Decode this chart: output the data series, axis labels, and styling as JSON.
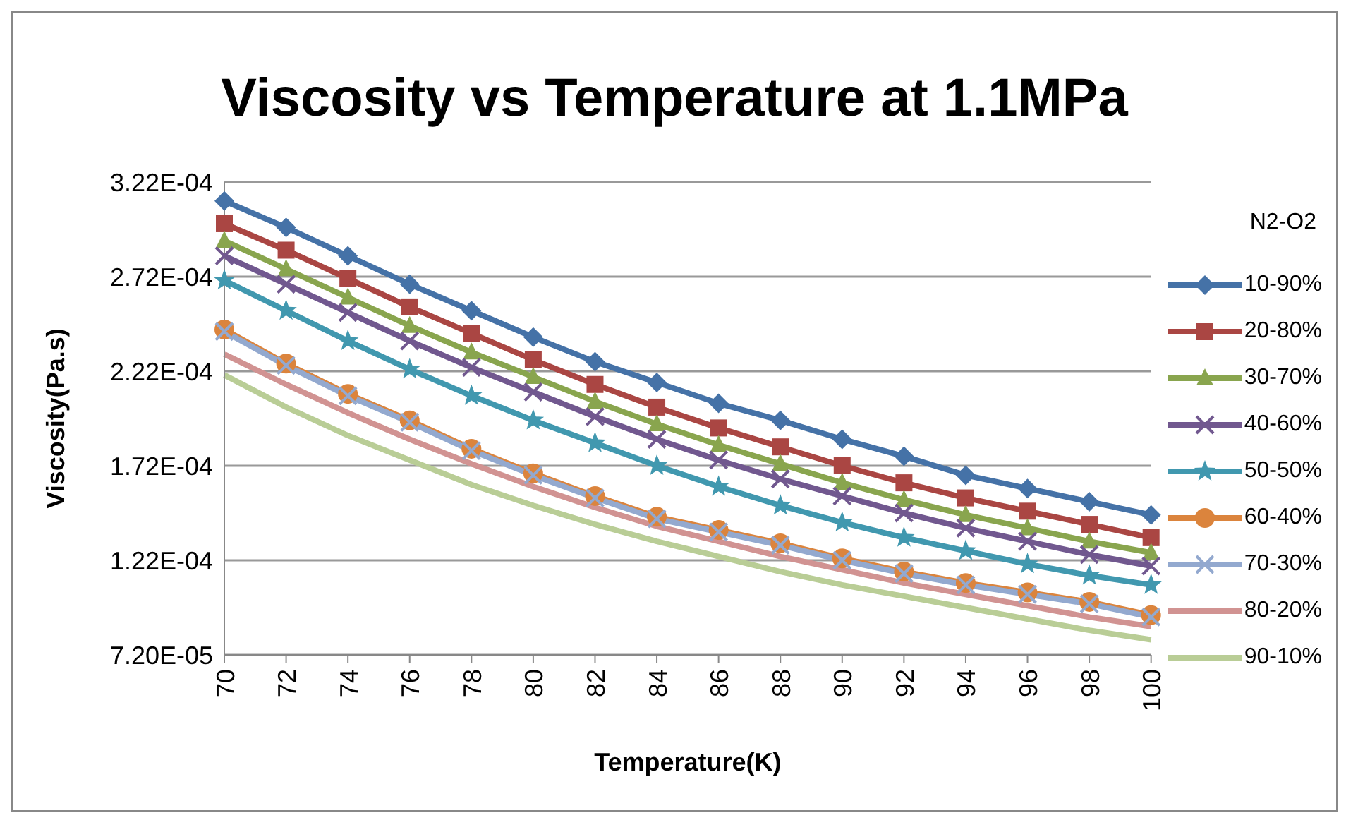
{
  "chart_data": {
    "type": "line",
    "title": "Viscosity vs Temperature at 1.1MPa",
    "xlabel": "Temperature(K)",
    "ylabel": "Viscosity(Pa.s)",
    "legend_title": "N2-O2",
    "categories": [
      "70",
      "72",
      "74",
      "76",
      "78",
      "80",
      "82",
      "84",
      "86",
      "88",
      "90",
      "92",
      "94",
      "96",
      "98",
      "100"
    ],
    "ylim": [
      7.2e-05,
      0.000322
    ],
    "yticks": [
      {
        "value": 7.2e-05,
        "label": "7.20E-05"
      },
      {
        "value": 0.000122,
        "label": "1.22E-04"
      },
      {
        "value": 0.000172,
        "label": "1.72E-04"
      },
      {
        "value": 0.000222,
        "label": "2.22E-04"
      },
      {
        "value": 0.000272,
        "label": "2.72E-04"
      },
      {
        "value": 0.000322,
        "label": "3.22E-04"
      }
    ],
    "grid": "y",
    "legend": "right",
    "line_style": "solid",
    "series": [
      {
        "name": "10-90%",
        "color": "#4572a7",
        "marker": "diamond",
        "values": [
          0.000312,
          0.000298,
          0.000283,
          0.000268,
          0.000254,
          0.00024,
          0.000227,
          0.000216,
          0.000205,
          0.000196,
          0.000186,
          0.000177,
          0.000167,
          0.00016,
          0.000153,
          0.000146
        ]
      },
      {
        "name": "20-80%",
        "color": "#aa4643",
        "marker": "square",
        "values": [
          0.0003,
          0.000286,
          0.000271,
          0.000256,
          0.000242,
          0.000228,
          0.000215,
          0.000203,
          0.000192,
          0.000182,
          0.000172,
          0.000163,
          0.000155,
          0.000148,
          0.000141,
          0.000134
        ]
      },
      {
        "name": "30-70%",
        "color": "#89a54e",
        "marker": "triangle",
        "values": [
          0.000291,
          0.000276,
          0.000261,
          0.000246,
          0.000232,
          0.000219,
          0.000206,
          0.000194,
          0.000183,
          0.000173,
          0.000163,
          0.000154,
          0.000146,
          0.000139,
          0.000132,
          0.000126
        ]
      },
      {
        "name": "40-60%",
        "color": "#71588f",
        "marker": "cross",
        "values": [
          0.000283,
          0.000268,
          0.000253,
          0.000238,
          0.000224,
          0.000211,
          0.000198,
          0.000186,
          0.000175,
          0.000165,
          0.000156,
          0.000147,
          0.000139,
          0.000132,
          0.000125,
          0.000119
        ]
      },
      {
        "name": "50-50%",
        "color": "#4198af",
        "marker": "star",
        "values": [
          0.00027,
          0.000254,
          0.000238,
          0.000223,
          0.000209,
          0.000196,
          0.000184,
          0.000172,
          0.000161,
          0.000151,
          0.000142,
          0.000134,
          0.000127,
          0.00012,
          0.000114,
          0.000109
        ]
      },
      {
        "name": "60-40%",
        "color": "#db843d",
        "marker": "circle",
        "values": [
          0.000244,
          0.000226,
          0.00021,
          0.000196,
          0.000181,
          0.000168,
          0.000156,
          0.000145,
          0.000138,
          0.000131,
          0.000123,
          0.000116,
          0.00011,
          0.000105,
          0.0001,
          9.3e-05
        ]
      },
      {
        "name": "70-30%",
        "color": "#93a9cf",
        "marker": "cross",
        "values": [
          0.000243,
          0.000225,
          0.000209,
          0.000195,
          0.00018,
          0.000167,
          0.000155,
          0.000144,
          0.000137,
          0.00013,
          0.000122,
          0.000115,
          0.000109,
          0.000104,
          9.9e-05,
          9.2e-05
        ]
      },
      {
        "name": "80-20%",
        "color": "#d19392",
        "marker": "none",
        "values": [
          0.000231,
          0.000215,
          0.0002,
          0.000186,
          0.000173,
          0.000161,
          0.00015,
          0.00014,
          0.000132,
          0.000124,
          0.000117,
          0.00011,
          0.000104,
          9.8e-05,
          9.2e-05,
          8.7e-05
        ]
      },
      {
        "name": "90-10%",
        "color": "#b9cd96",
        "marker": "none",
        "values": [
          0.00022,
          0.000203,
          0.000188,
          0.000175,
          0.000162,
          0.000151,
          0.000141,
          0.000132,
          0.000124,
          0.000116,
          0.000109,
          0.000103,
          9.7e-05,
          9.1e-05,
          8.5e-05,
          8e-05
        ]
      }
    ]
  }
}
